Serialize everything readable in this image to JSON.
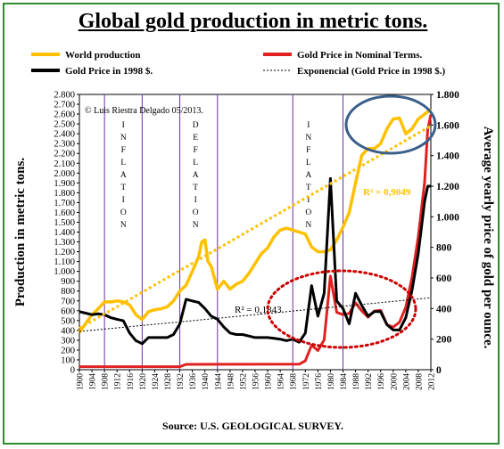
{
  "title": "Global gold production in metric tons.",
  "source": "Source: U.S. GEOLOGICAL SURVEY.",
  "chart_data": {
    "type": "line",
    "copyright": "© Luis Riestra Delgado 05/2013.",
    "ylabel_left": "Production in metric tons.",
    "ylabel_right": "Average yearly price of gold per ounce.",
    "xlim": [
      1900,
      2012
    ],
    "ylim_left": [
      0,
      2800
    ],
    "ylim_right": [
      0,
      1800
    ],
    "x_ticks": [
      1900,
      1904,
      1908,
      1912,
      1916,
      1920,
      1924,
      1928,
      1932,
      1936,
      1940,
      1944,
      1948,
      1952,
      1956,
      1960,
      1964,
      1968,
      1972,
      1976,
      1980,
      1984,
      1988,
      1992,
      1996,
      2000,
      2004,
      2008,
      2012
    ],
    "x_tick_labels": [
      "1900",
      "1904",
      "1908",
      "1912",
      "1916",
      "1920",
      "1924",
      "1928",
      "1932",
      "1936",
      "1940",
      "1944",
      "1948",
      "1952",
      "1956",
      "1960",
      "1964",
      "1968",
      "1972",
      "1976",
      "1980",
      "1984",
      "1988",
      "1992",
      "1996",
      "2000",
      "2004",
      "2008",
      "2012"
    ],
    "y_left_ticks": [
      0,
      100,
      200,
      300,
      400,
      500,
      600,
      700,
      800,
      900,
      1000,
      1100,
      1200,
      1300,
      1400,
      1500,
      1600,
      1700,
      1800,
      1900,
      2000,
      2100,
      2200,
      2300,
      2400,
      2500,
      2600,
      2700,
      2800
    ],
    "y_left_tick_labels": [
      "0",
      "100",
      "200",
      "300",
      "400",
      "500",
      "600",
      "700",
      "800",
      "900",
      "1.000",
      "1.100",
      "1.200",
      "1.300",
      "1.400",
      "1.500",
      "1.600",
      "1.700",
      "1.800",
      "1.900",
      "2.000",
      "2.100",
      "2.200",
      "2.300",
      "2.400",
      "2.500",
      "2.600",
      "2.700",
      "2.800"
    ],
    "y_right_ticks": [
      0,
      200,
      400,
      600,
      800,
      1000,
      1200,
      1400,
      1600,
      1800
    ],
    "y_right_tick_labels": [
      "0",
      "200",
      "400",
      "600",
      "800",
      "1.000",
      "1.200",
      "1.400",
      "1.600",
      "1.800"
    ],
    "period_lines": [
      1908,
      1920,
      1932,
      1944,
      1968,
      1984
    ],
    "periods": [
      {
        "label": "INFLATION",
        "x": 1914
      },
      {
        "label": "DEFLATION",
        "x": 1937
      },
      {
        "label": "INFLATION",
        "x": 1973
      }
    ],
    "legend": {
      "world_production": "World production",
      "nominal": "Gold Price in Nominal Terms.",
      "real_1998": "Gold Price in 1998 $.",
      "trend": "Exponencial (Gold Price in 1998 $.)"
    },
    "r2_production": "R² = 0,9049",
    "r2_price": "R² = 0,1843",
    "series": [
      {
        "name": "World production",
        "axis": "left",
        "color": "#ffc000",
        "x": [
          1900,
          1902,
          1904,
          1906,
          1908,
          1910,
          1912,
          1914,
          1916,
          1918,
          1920,
          1922,
          1924,
          1926,
          1928,
          1930,
          1932,
          1934,
          1936,
          1938,
          1939,
          1940,
          1941,
          1942,
          1944,
          1946,
          1948,
          1950,
          1952,
          1954,
          1956,
          1958,
          1960,
          1962,
          1964,
          1966,
          1968,
          1970,
          1972,
          1974,
          1976,
          1978,
          1980,
          1982,
          1984,
          1986,
          1988,
          1990,
          1992,
          1994,
          1996,
          1998,
          2000,
          2002,
          2004,
          2006,
          2008,
          2010,
          2012
        ],
        "y": [
          380,
          470,
          560,
          620,
          690,
          690,
          700,
          690,
          660,
          560,
          510,
          590,
          610,
          620,
          640,
          700,
          800,
          860,
          1000,
          1150,
          1300,
          1320,
          1100,
          1050,
          820,
          900,
          820,
          870,
          900,
          980,
          1080,
          1180,
          1240,
          1350,
          1420,
          1440,
          1420,
          1400,
          1380,
          1250,
          1200,
          1200,
          1220,
          1320,
          1450,
          1600,
          1900,
          2180,
          2250,
          2250,
          2300,
          2450,
          2550,
          2560,
          2400,
          2450,
          2550,
          2600,
          2650
        ]
      },
      {
        "name": "Gold Price in Nominal Terms.",
        "axis": "right",
        "color": "#e02020",
        "x": [
          1900,
          1932,
          1934,
          1970,
          1972,
          1974,
          1976,
          1978,
          1980,
          1982,
          1984,
          1986,
          1988,
          1990,
          1992,
          1994,
          1996,
          1998,
          2000,
          2002,
          2004,
          2006,
          2008,
          2010,
          2011,
          2012
        ],
        "y": [
          20,
          20,
          35,
          36,
          58,
          160,
          125,
          195,
          612,
          375,
          360,
          368,
          437,
          384,
          343,
          384,
          388,
          294,
          279,
          310,
          409,
          604,
          872,
          1225,
          1571,
          1669
        ]
      },
      {
        "name": "Gold Price in 1998 $.",
        "axis": "right",
        "color": "#000000",
        "x": [
          1900,
          1902,
          1904,
          1906,
          1908,
          1910,
          1912,
          1914,
          1916,
          1918,
          1920,
          1922,
          1924,
          1926,
          1928,
          1930,
          1932,
          1934,
          1936,
          1938,
          1940,
          1942,
          1944,
          1946,
          1948,
          1950,
          1952,
          1954,
          1956,
          1958,
          1960,
          1962,
          1964,
          1966,
          1968,
          1970,
          1972,
          1974,
          1976,
          1978,
          1980,
          1982,
          1984,
          1986,
          1988,
          1990,
          1992,
          1994,
          1996,
          1998,
          2000,
          2002,
          2004,
          2006,
          2008,
          2010,
          2011,
          2012
        ],
        "y": [
          380,
          370,
          360,
          365,
          360,
          340,
          330,
          320,
          240,
          190,
          170,
          210,
          210,
          210,
          210,
          230,
          300,
          460,
          450,
          440,
          400,
          350,
          330,
          280,
          240,
          230,
          230,
          220,
          210,
          210,
          210,
          205,
          200,
          190,
          200,
          180,
          240,
          550,
          350,
          500,
          1250,
          450,
          400,
          300,
          500,
          420,
          350,
          380,
          380,
          294,
          260,
          260,
          340,
          520,
          760,
          1100,
          1200,
          1200
        ]
      },
      {
        "name": "Exponencial (Gold Price in 1998 $.)",
        "axis": "right",
        "color": "#000000",
        "dashed": true,
        "x": [
          1900,
          2012
        ],
        "y": [
          250,
          470
        ]
      },
      {
        "name": "World production trend",
        "axis": "left",
        "color": "#ffc000",
        "dashed": true,
        "x": [
          1900,
          2012
        ],
        "y": [
          420,
          2480
        ]
      }
    ]
  }
}
